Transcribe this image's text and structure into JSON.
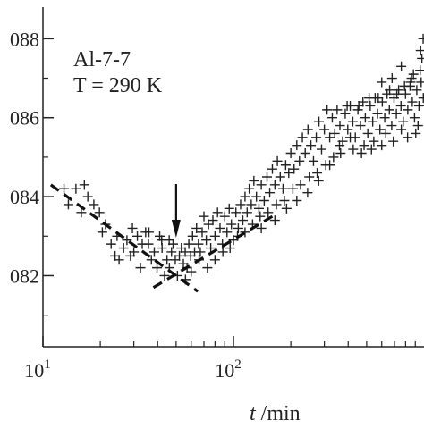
{
  "chart_data": {
    "type": "scatter",
    "title": "",
    "annotations": {
      "sample": "Al-7-7",
      "temperature": "T = 290 K"
    },
    "xlabel": {
      "symbol": "t",
      "unit": " /min"
    },
    "ylabel": "",
    "x_scale": "log",
    "xlim": [
      10,
      1000
    ],
    "ylim": [
      0.0802,
      0.0888
    ],
    "x_ticks": [
      {
        "base": "10",
        "exp": "1",
        "value": 10
      },
      {
        "base": "10",
        "exp": "2",
        "value": 100
      }
    ],
    "y_ticks": [
      {
        "label": "082",
        "value": 0.082
      },
      {
        "label": "084",
        "value": 0.084
      },
      {
        "label": "086",
        "value": 0.086
      },
      {
        "label": "088",
        "value": 0.088
      }
    ],
    "grid": false,
    "marker": "+",
    "marker_color": "#222222",
    "fit_line_color": "#111111",
    "arrow_x": 50,
    "fit_lines": [
      {
        "style": "dashed",
        "x": [
          11,
          65
        ],
        "y": [
          0.0843,
          0.0816
        ]
      },
      {
        "style": "dashed",
        "x": [
          38,
          160
        ],
        "y": [
          0.0817,
          0.0835
        ]
      }
    ],
    "series": [
      {
        "points": [
          [
            12.9,
            0.0842
          ],
          [
            13.6,
            0.0838
          ],
          [
            14.9,
            0.0842
          ],
          [
            15.9,
            0.0836
          ],
          [
            17.2,
            0.084
          ],
          [
            18.5,
            0.0838
          ],
          [
            19.8,
            0.0836
          ],
          [
            21.3,
            0.0833
          ],
          [
            22.8,
            0.0828
          ],
          [
            23.9,
            0.0825
          ],
          [
            25.1,
            0.0824
          ],
          [
            26.5,
            0.0827
          ],
          [
            27.6,
            0.0829
          ],
          [
            28.8,
            0.0825
          ],
          [
            30.0,
            0.0826
          ],
          [
            31.3,
            0.083
          ],
          [
            32.5,
            0.0822
          ],
          [
            33.2,
            0.0828
          ],
          [
            34.6,
            0.0831
          ],
          [
            35.8,
            0.0828
          ],
          [
            37.1,
            0.0824
          ],
          [
            38.4,
            0.0826
          ],
          [
            39.7,
            0.0822
          ],
          [
            41.0,
            0.083
          ],
          [
            42.2,
            0.0827
          ],
          [
            43.5,
            0.082
          ],
          [
            44.8,
            0.0824
          ],
          [
            46.1,
            0.0822
          ],
          [
            47.3,
            0.0826
          ],
          [
            48.2,
            0.0828
          ],
          [
            49.5,
            0.0824
          ],
          [
            50.8,
            0.082
          ],
          [
            52.0,
            0.0825
          ],
          [
            53.3,
            0.0827
          ],
          [
            54.6,
            0.0823
          ],
          [
            55.8,
            0.0826
          ],
          [
            57.1,
            0.0822
          ],
          [
            58.3,
            0.0828
          ],
          [
            59.6,
            0.0825
          ],
          [
            61.0,
            0.083
          ],
          [
            62.5,
            0.0826
          ],
          [
            64.0,
            0.0832
          ],
          [
            65.5,
            0.0828
          ],
          [
            67.0,
            0.0826
          ],
          [
            68.5,
            0.0831
          ],
          [
            70.0,
            0.0835
          ],
          [
            72.0,
            0.0829
          ],
          [
            74.0,
            0.0833
          ],
          [
            76.0,
            0.0827
          ],
          [
            78.0,
            0.0834
          ],
          [
            80.0,
            0.083
          ],
          [
            82.5,
            0.0836
          ],
          [
            85.0,
            0.0832
          ],
          [
            87.5,
            0.0828
          ],
          [
            90.0,
            0.0835
          ],
          [
            92.5,
            0.0831
          ],
          [
            95.0,
            0.0837
          ],
          [
            97.5,
            0.0833
          ],
          [
            100.0,
            0.0829
          ],
          [
            103.0,
            0.0836
          ],
          [
            106.0,
            0.0832
          ],
          [
            109.0,
            0.0838
          ],
          [
            112.0,
            0.0834
          ],
          [
            115.0,
            0.084
          ],
          [
            118.0,
            0.0836
          ],
          [
            121.0,
            0.0842
          ],
          [
            124.0,
            0.0838
          ],
          [
            128.0,
            0.0844
          ],
          [
            132.0,
            0.084
          ],
          [
            136.0,
            0.0837
          ],
          [
            140.0,
            0.0843
          ],
          [
            145.0,
            0.0839
          ],
          [
            150.0,
            0.0845
          ],
          [
            155.0,
            0.0841
          ],
          [
            160.0,
            0.0847
          ],
          [
            165.0,
            0.0843
          ],
          [
            170.0,
            0.0849
          ],
          [
            176.0,
            0.0845
          ],
          [
            182.0,
            0.0842
          ],
          [
            188.0,
            0.0848
          ],
          [
            195.0,
            0.0846
          ],
          [
            200.0,
            0.0851
          ],
          [
            208.0,
            0.0847
          ],
          [
            215.0,
            0.0853
          ],
          [
            222.0,
            0.0849
          ],
          [
            230.0,
            0.0855
          ],
          [
            238.0,
            0.0851
          ],
          [
            246.0,
            0.0857
          ],
          [
            255.0,
            0.0853
          ],
          [
            263.0,
            0.0849
          ],
          [
            272.0,
            0.0855
          ],
          [
            281.0,
            0.0859
          ],
          [
            290.0,
            0.0852
          ],
          [
            300.0,
            0.0857
          ],
          [
            310.0,
            0.0862
          ],
          [
            320.0,
            0.0855
          ],
          [
            330.0,
            0.086
          ],
          [
            340.0,
            0.0856
          ],
          [
            350.0,
            0.0862
          ],
          [
            362.0,
            0.0858
          ],
          [
            374.0,
            0.0854
          ],
          [
            386.0,
            0.0861
          ],
          [
            398.0,
            0.0857
          ],
          [
            410.0,
            0.0863
          ],
          [
            423.0,
            0.0859
          ],
          [
            436.0,
            0.0855
          ],
          [
            450.0,
            0.0862
          ],
          [
            464.0,
            0.0858
          ],
          [
            478.0,
            0.0864
          ],
          [
            492.0,
            0.086
          ],
          [
            507.0,
            0.0856
          ],
          [
            522.0,
            0.0863
          ],
          [
            538.0,
            0.0859
          ],
          [
            554.0,
            0.0865
          ],
          [
            570.0,
            0.0861
          ],
          [
            587.0,
            0.0857
          ],
          [
            604.0,
            0.0864
          ],
          [
            622.0,
            0.086
          ],
          [
            640.0,
            0.0866
          ],
          [
            658.0,
            0.0862
          ],
          [
            677.0,
            0.0858
          ],
          [
            696.0,
            0.0865
          ],
          [
            716.0,
            0.0861
          ],
          [
            736.0,
            0.0867
          ],
          [
            757.0,
            0.0863
          ],
          [
            778.0,
            0.0859
          ],
          [
            800.0,
            0.0866
          ],
          [
            822.0,
            0.0862
          ],
          [
            845.0,
            0.0868
          ],
          [
            868.0,
            0.0864
          ],
          [
            892.0,
            0.086
          ],
          [
            916.0,
            0.0867
          ],
          [
            941.0,
            0.0863
          ],
          [
            966.0,
            0.0869
          ],
          [
            992.0,
            0.0865
          ],
          [
            975.0,
            0.0875
          ],
          [
            955.0,
            0.0872
          ],
          [
            930.0,
            0.0858
          ],
          [
            905.0,
            0.0856
          ],
          [
            880.0,
            0.0871
          ],
          [
            850.0,
            0.0869
          ],
          [
            820.0,
            0.0855
          ],
          [
            790.0,
            0.0868
          ],
          [
            760.0,
            0.0857
          ],
          [
            720.0,
            0.0866
          ],
          [
            690.0,
            0.0854
          ],
          [
            660.0,
            0.0867
          ],
          [
            630.0,
            0.0856
          ],
          [
            600.0,
            0.0853
          ],
          [
            575.0,
            0.0865
          ],
          [
            545.0,
            0.0854
          ],
          [
            515.0,
            0.0865
          ],
          [
            485.0,
            0.0853
          ],
          [
            455.0,
            0.0863
          ],
          [
            425.0,
            0.0852
          ],
          [
            395.0,
            0.0863
          ],
          [
            365.0,
            0.0851
          ],
          [
            335.0,
            0.085
          ],
          [
            305.0,
            0.0848
          ],
          [
            275.0,
            0.0846
          ],
          [
            250.0,
            0.0845
          ],
          [
            225.0,
            0.0843
          ],
          [
            205.0,
            0.0842
          ],
          [
            185.0,
            0.0839
          ],
          [
            168.0,
            0.0838
          ],
          [
            152.0,
            0.0836
          ],
          [
            138.0,
            0.0835
          ],
          [
            126.0,
            0.0833
          ],
          [
            115.0,
            0.0831
          ],
          [
            105.0,
            0.083
          ],
          [
            96.0,
            0.0827
          ],
          [
            88.0,
            0.0826
          ],
          [
            80.0,
            0.0824
          ],
          [
            73.0,
            0.0822
          ],
          [
            66.0,
            0.0824
          ],
          [
            60.0,
            0.0821
          ],
          [
            56.0,
            0.0819
          ],
          [
            46.0,
            0.0829
          ],
          [
            42.0,
            0.0829
          ],
          [
            36.0,
            0.0831
          ],
          [
            29.5,
            0.0832
          ],
          [
            24.5,
            0.083
          ],
          [
            20.5,
            0.0831
          ],
          [
            16.5,
            0.0843
          ],
          [
            140.0,
            0.0832
          ],
          [
            165.0,
            0.0834
          ],
          [
            190.0,
            0.0837
          ],
          [
            215.0,
            0.0839
          ],
          [
            245.0,
            0.0841
          ],
          [
            280.0,
            0.0844
          ],
          [
            320.0,
            0.0848
          ],
          [
            360.0,
            0.0853
          ],
          [
            410.0,
            0.0855
          ],
          [
            470.0,
            0.0851
          ],
          [
            530.0,
            0.0852
          ],
          [
            600.0,
            0.0869
          ],
          [
            680.0,
            0.087
          ],
          [
            760.0,
            0.0873
          ],
          [
            860.0,
            0.087
          ],
          [
            960.0,
            0.0877
          ],
          [
            990.0,
            0.088
          ]
        ]
      }
    ]
  }
}
